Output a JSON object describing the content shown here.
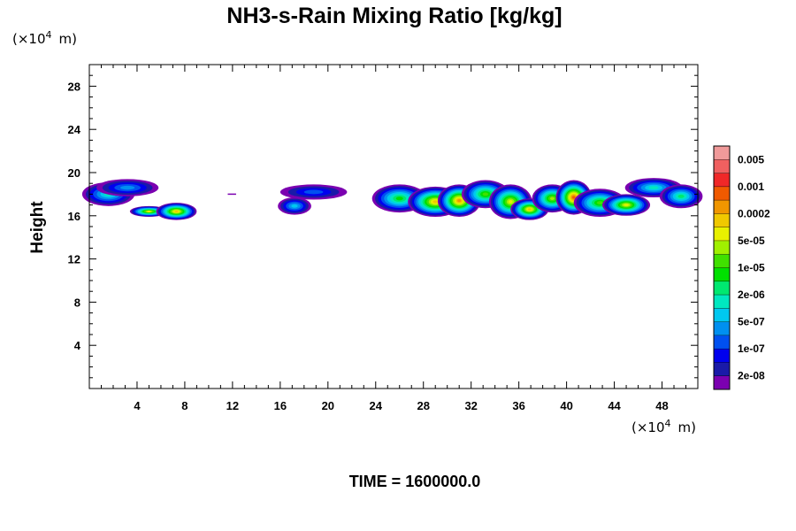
{
  "chart_data": {
    "type": "heatmap",
    "title": "NH3-s-Rain Mixing Ratio [kg/kg]",
    "ylabel": "Height",
    "xlabel": "",
    "x_units": "(×10⁴ m)",
    "y_units": "(×10⁴ m)",
    "x_unit_prefix": "(×10",
    "y_unit_prefix": "(×10",
    "unit_exponent": "4",
    "unit_suffix": "m)",
    "xlim": [
      0,
      51
    ],
    "ylim": [
      0,
      30
    ],
    "xticks": [
      4,
      8,
      12,
      16,
      20,
      24,
      28,
      32,
      36,
      40,
      44,
      48
    ],
    "xtick_labels": [
      "4",
      "8",
      "12",
      "16",
      "20",
      "24",
      "28",
      "32",
      "36",
      "40",
      "44",
      "48"
    ],
    "yticks": [
      4,
      8,
      12,
      16,
      20,
      24,
      28
    ],
    "ytick_labels": [
      "4",
      "8",
      "12",
      "16",
      "20",
      "24",
      "28"
    ],
    "time_label": "TIME = 1600000.0",
    "colorbar": {
      "colors": [
        "#7b00b0",
        "#1a1aa8",
        "#0000ee",
        "#0050f0",
        "#0090f0",
        "#00c8f0",
        "#00e8c0",
        "#00e870",
        "#00e000",
        "#40e000",
        "#a0f000",
        "#e8f000",
        "#f0c800",
        "#f09600",
        "#f05a00",
        "#f02828",
        "#f06060",
        "#f09a9a"
      ],
      "labels": [
        "2e-08",
        "1e-07",
        "5e-07",
        "2e-06",
        "1e-05",
        "5e-05",
        "0.0002",
        "0.001",
        "0.005"
      ]
    },
    "cloud_cells": [
      {
        "x": 1.6,
        "y": 18.0,
        "rx": 2.2,
        "ry": 1.1,
        "peak": 6
      },
      {
        "x": 3.2,
        "y": 18.6,
        "rx": 2.6,
        "ry": 0.8,
        "peak": 4
      },
      {
        "x": 5.0,
        "y": 16.4,
        "rx": 1.6,
        "ry": 0.5,
        "peak": 11
      },
      {
        "x": 7.3,
        "y": 16.4,
        "rx": 1.7,
        "ry": 0.8,
        "peak": 12
      },
      {
        "x": 17.2,
        "y": 16.9,
        "rx": 1.4,
        "ry": 0.8,
        "peak": 5
      },
      {
        "x": 18.8,
        "y": 18.2,
        "rx": 2.8,
        "ry": 0.7,
        "peak": 3
      },
      {
        "x": 26.0,
        "y": 17.6,
        "rx": 2.3,
        "ry": 1.3,
        "peak": 8
      },
      {
        "x": 29.0,
        "y": 17.3,
        "rx": 2.3,
        "ry": 1.4,
        "peak": 12
      },
      {
        "x": 31.0,
        "y": 17.4,
        "rx": 1.8,
        "ry": 1.5,
        "peak": 13
      },
      {
        "x": 33.2,
        "y": 18.0,
        "rx": 2.0,
        "ry": 1.3,
        "peak": 9
      },
      {
        "x": 35.3,
        "y": 17.3,
        "rx": 1.8,
        "ry": 1.6,
        "peak": 11
      },
      {
        "x": 36.9,
        "y": 16.6,
        "rx": 1.6,
        "ry": 1.0,
        "peak": 12
      },
      {
        "x": 38.8,
        "y": 17.6,
        "rx": 1.7,
        "ry": 1.3,
        "peak": 10
      },
      {
        "x": 40.6,
        "y": 17.7,
        "rx": 1.5,
        "ry": 1.6,
        "peak": 14
      },
      {
        "x": 42.8,
        "y": 17.2,
        "rx": 2.2,
        "ry": 1.3,
        "peak": 9
      },
      {
        "x": 45.0,
        "y": 17.0,
        "rx": 2.0,
        "ry": 1.0,
        "peak": 11
      },
      {
        "x": 47.3,
        "y": 18.6,
        "rx": 2.4,
        "ry": 0.9,
        "peak": 6
      },
      {
        "x": 49.6,
        "y": 17.8,
        "rx": 1.8,
        "ry": 1.1,
        "peak": 7
      }
    ],
    "grid": false
  }
}
